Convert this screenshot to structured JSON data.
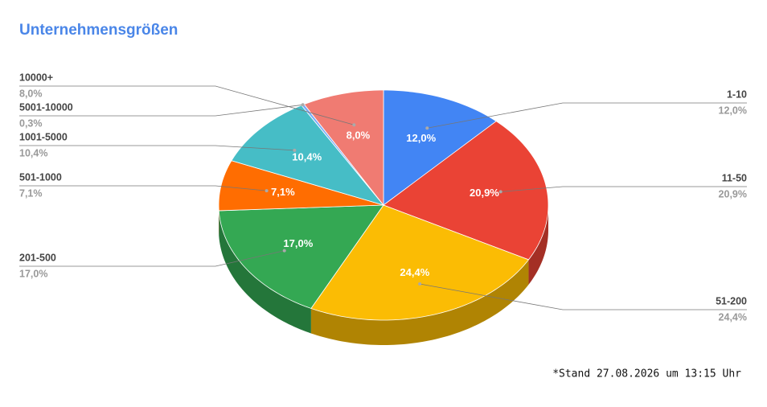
{
  "chart_data": {
    "type": "pie",
    "title": "Unternehmensgrößen",
    "categories": [
      "1-10",
      "11-50",
      "51-200",
      "201-500",
      "501-1000",
      "1001-5000",
      "5001-10000",
      "10000+"
    ],
    "values": [
      12.0,
      20.9,
      24.4,
      17.0,
      7.1,
      10.4,
      0.3,
      8.0
    ],
    "value_labels": [
      "12,0%",
      "20,9%",
      "24,4%",
      "17,0%",
      "7,1%",
      "10,4%",
      "0,3%",
      "8,0%"
    ],
    "colors": [
      "#4285f4",
      "#ea4335",
      "#fbbc04",
      "#34a853",
      "#ff6d01",
      "#46bdc6",
      "#7baaf7",
      "#f07b72"
    ],
    "footnote": "*Stand 27.08.2026 um 13:15 Uhr"
  }
}
